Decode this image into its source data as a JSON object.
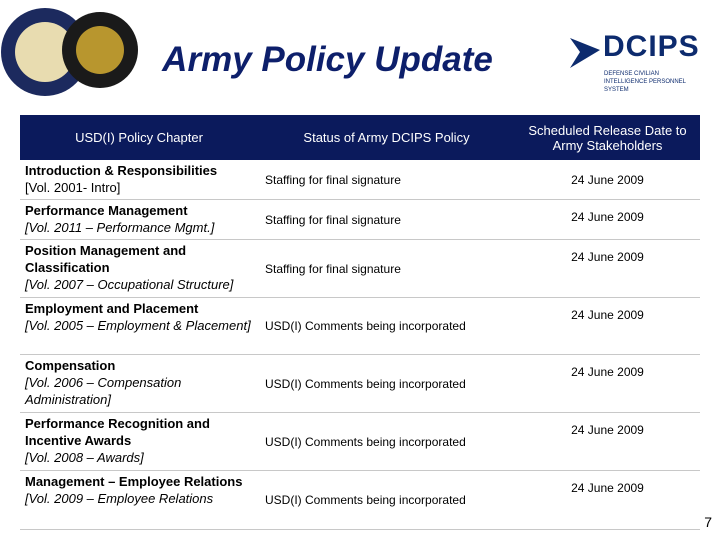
{
  "header": {
    "title": "Army Policy Update"
  },
  "logo": {
    "name": "DCIPS",
    "subtitle": "DEFENSE CIVILIAN INTELLIGENCE PERSONNEL SYSTEM"
  },
  "table": {
    "columns": [
      "USD(I) Policy Chapter",
      "Status of Army DCIPS Policy",
      "Scheduled Release Date to Army Stakeholders"
    ],
    "rows": [
      {
        "chapter": "Introduction & Responsibilities",
        "reference": "[Vol. 2001- Intro]",
        "status": "Staffing for final signature",
        "date": "24 June 2009"
      },
      {
        "chapter": "Performance Management",
        "reference": "[Vol. 2011 – Performance Mgmt.]",
        "status": "Staffing for final signature",
        "date": "24 June 2009"
      },
      {
        "chapter": "Position Management and Classification",
        "reference": "[Vol. 2007 – Occupational Structure]",
        "status": "Staffing for final signature",
        "date": "24 June 2009"
      },
      {
        "chapter": "Employment and Placement",
        "reference": "[Vol. 2005 – Employment & Placement]",
        "status": "USD(I) Comments being incorporated",
        "date": "24 June 2009"
      },
      {
        "chapter": "Compensation",
        "reference": "[Vol. 2006 – Compensation Administration]",
        "status": "USD(I) Comments being incorporated",
        "date": "24 June 2009"
      },
      {
        "chapter": "Performance Recognition and Incentive Awards",
        "reference": "[Vol. 2008 – Awards]",
        "status": "USD(I) Comments being incorporated",
        "date": "24 June 2009"
      },
      {
        "chapter": "Management – Employee Relations",
        "reference": "[Vol. 2009 – Employee Relations",
        "status": "USD(I) Comments being incorporated",
        "date": "24 June 2009"
      }
    ]
  },
  "page_number": "7"
}
